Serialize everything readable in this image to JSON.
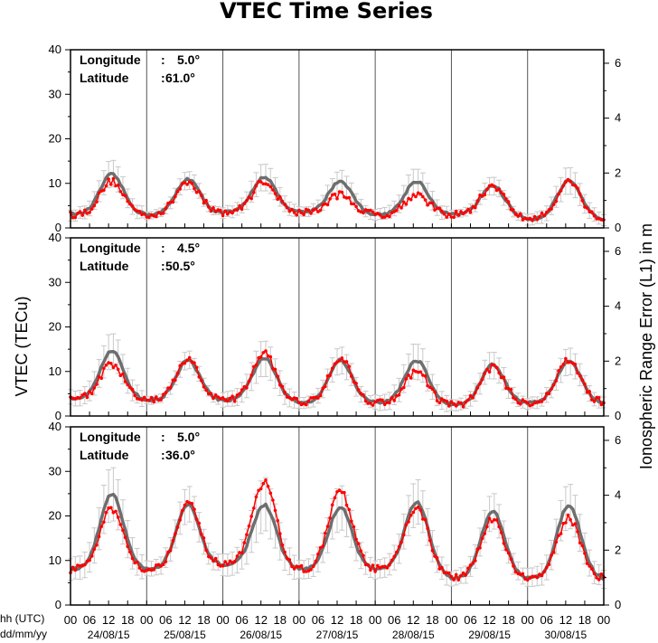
{
  "chart_data": {
    "type": "line",
    "title": "VTEC Time Series",
    "ylabel": "VTEC (TECu)",
    "ylabel_right": "Ionospheric Range Error (L1) in m",
    "xlabel_line1": "hh (UTC)",
    "xlabel_line2": "dd/mm/yy",
    "hour_ticks": [
      "00",
      "06",
      "12",
      "18",
      "00",
      "06",
      "12",
      "18",
      "00",
      "06",
      "12",
      "18",
      "00",
      "06",
      "12",
      "18",
      "00",
      "06",
      "12",
      "18",
      "00",
      "06",
      "12",
      "18",
      "00",
      "06",
      "12",
      "18",
      "00"
    ],
    "day_labels": [
      "24/08/15",
      "25/08/15",
      "26/08/15",
      "27/08/15",
      "28/08/15",
      "29/08/15",
      "30/08/15"
    ],
    "xlim_hours": [
      0,
      168
    ],
    "ylim": [
      0,
      40
    ],
    "y_ticks": [
      "0",
      "10",
      "20",
      "30",
      "40"
    ],
    "y_right_ticks": [
      "0",
      "2",
      "4",
      "6"
    ],
    "series_colors": {
      "reference": "#6e6e6e",
      "band": "#c8c8c8",
      "observed": "#ff0000"
    },
    "panels": [
      {
        "longitude_label": "Longitude",
        "longitude_value": "5.0°",
        "latitude_label": "Latitude",
        "latitude_value": "61.0°",
        "night_level": [
          3,
          3,
          3.5,
          3.5,
          3,
          3,
          2
        ],
        "ref_peak": [
          12,
          11,
          11.5,
          10.5,
          10.5,
          9.5,
          10.5
        ],
        "obs_peak": [
          10.5,
          10.5,
          10.5,
          7.5,
          7.5,
          9.5,
          10.5
        ],
        "ref_noise": [
          3,
          2,
          3,
          2.5,
          3,
          2,
          3
        ]
      },
      {
        "longitude_label": "Longitude",
        "longitude_value": "4.5°",
        "latitude_label": "Latitude",
        "latitude_value": "50.5°",
        "night_level": [
          4,
          3.5,
          3.5,
          3,
          3,
          2.5,
          3
        ],
        "ref_peak": [
          14.5,
          12.5,
          13,
          12.5,
          12.5,
          11.5,
          12.5
        ],
        "obs_peak": [
          11.5,
          12.5,
          14,
          13,
          10,
          11,
          12.5
        ],
        "ref_noise": [
          4,
          2,
          4,
          3,
          4,
          3,
          3
        ]
      },
      {
        "longitude_label": "Longitude",
        "longitude_value": "5.0°",
        "latitude_label": "Latitude",
        "latitude_value": "36.0°",
        "night_level": [
          8,
          8,
          9,
          8,
          8,
          6,
          6
        ],
        "ref_peak": [
          25,
          22.5,
          22.5,
          22,
          23,
          21,
          22.5
        ],
        "obs_peak": [
          21.5,
          23,
          27.5,
          25.5,
          22,
          19.5,
          19.5
        ],
        "ref_noise": [
          6,
          4,
          6,
          5,
          5,
          4,
          5
        ]
      }
    ]
  }
}
